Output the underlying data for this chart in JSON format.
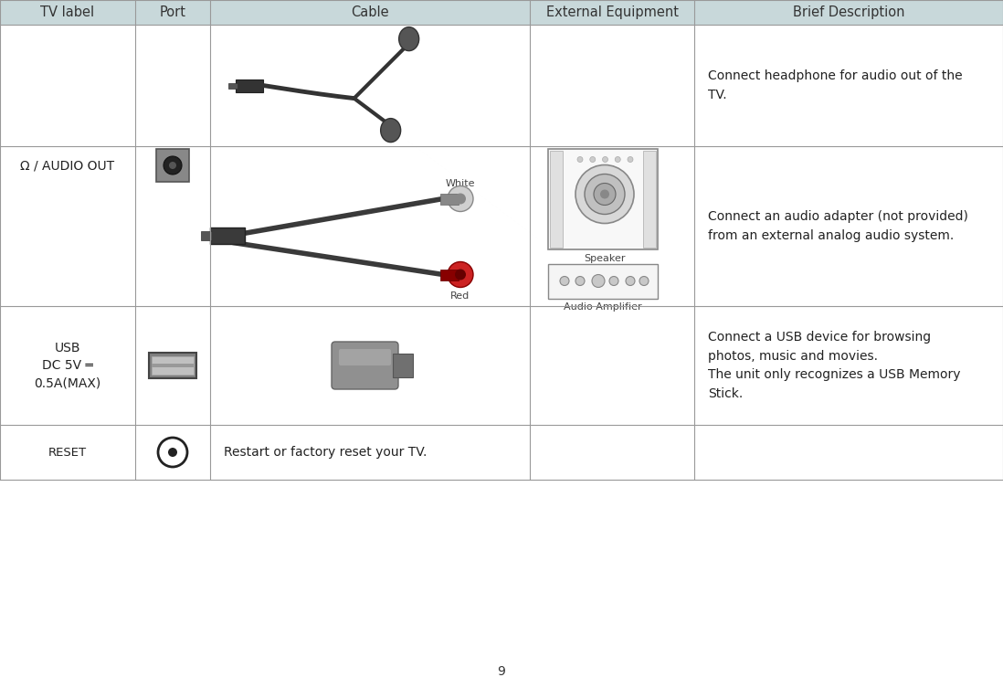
{
  "bg_color": "#ffffff",
  "header_bg": "#c8d8da",
  "header_text_color": "#333333",
  "cell_text_color": "#222222",
  "line_color": "#999999",
  "header_labels": [
    "TV label",
    "Port",
    "Cable",
    "External Equipment",
    "Brief Description"
  ],
  "page_number": "9",
  "row1_label": "Ω / AUDIO OUT",
  "row2_label": "USB\nDC 5V —\n0.5A(MAX)",
  "row3_label": "RESET",
  "desc1a": "Connect headphone for audio out of the\nTV.",
  "desc1b": "Connect an audio adapter (not provided)\nfrom an external analog audio system.",
  "desc2": "Connect a USB device for browsing\nphotos, music and movies.\nThe unit only recognizes a USB Memory\nStick.",
  "desc3": "Restart or factory reset your TV.",
  "red_color": "#cc2222",
  "font_size_header": 10.5,
  "font_size_cell": 10,
  "font_size_desc": 10
}
